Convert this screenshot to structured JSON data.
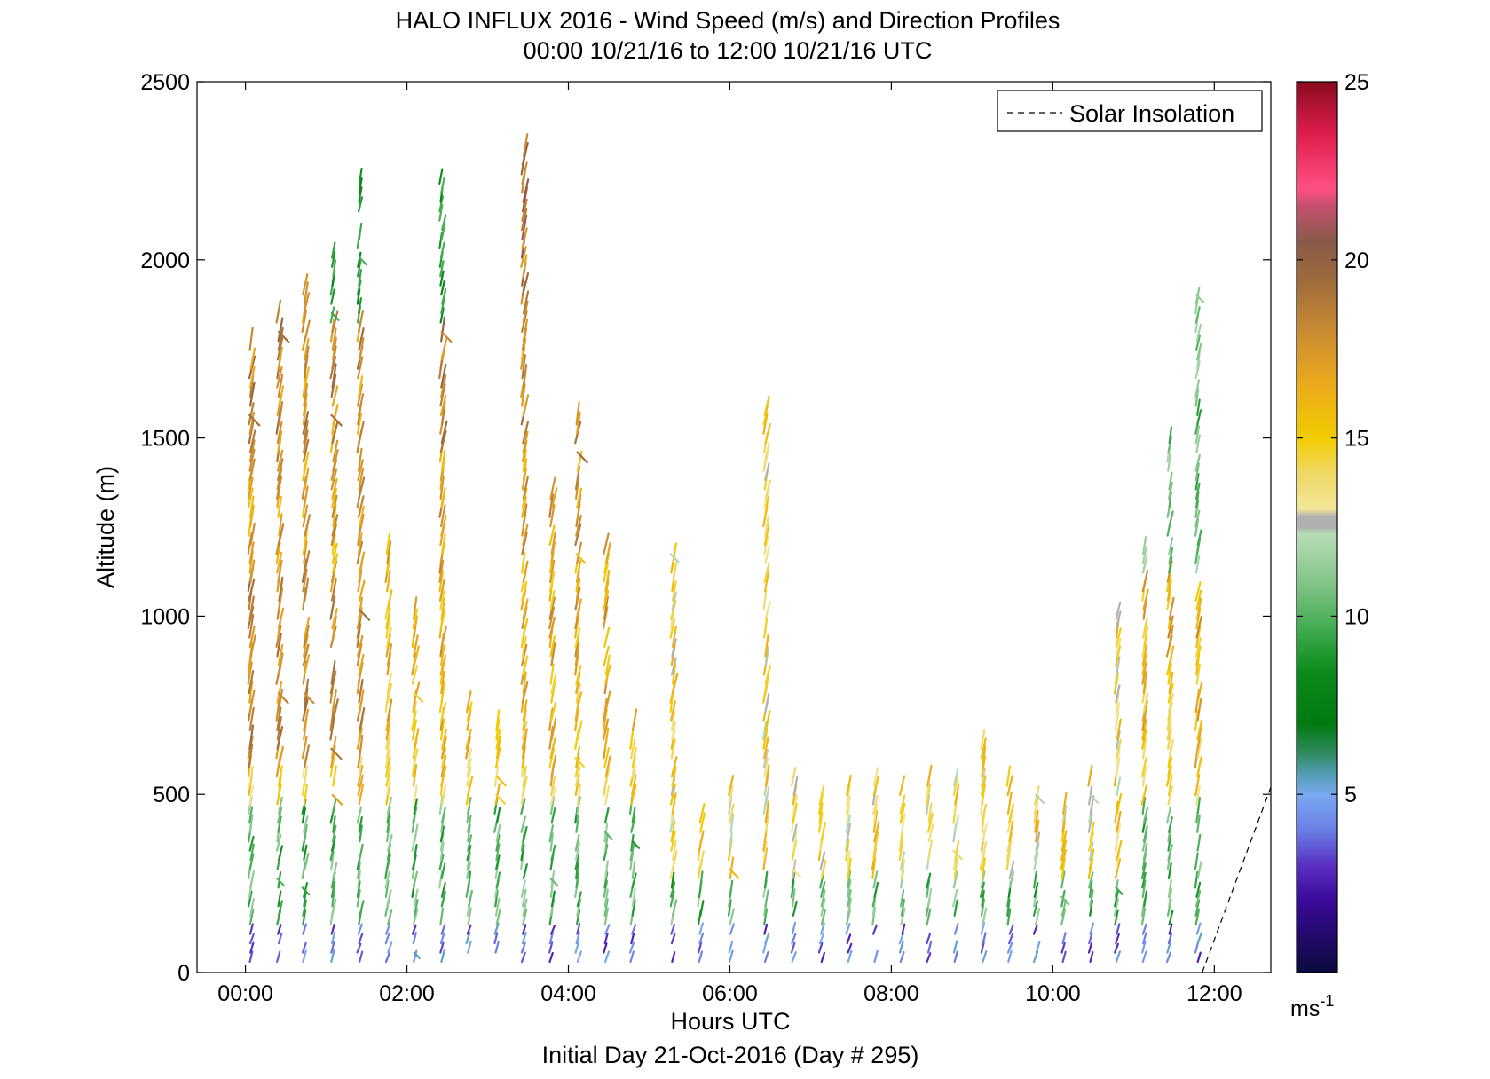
{
  "chart_data": {
    "type": "scatter",
    "marker": "wind-barb-arrows",
    "title": "HALO INFLUX 2016 - Wind Speed (m/s) and Direction Profiles",
    "subtitle": "00:00 10/21/16 to 12:00 10/21/16  UTC",
    "xlabel": "Hours UTC",
    "ylabel": "Altitude (m)",
    "footer": "Initial Day 21-Oct-2016 (Day # 295)",
    "xlim": [
      -0.6,
      12.7
    ],
    "ylim": [
      0,
      2500
    ],
    "x_ticks": [
      0,
      2,
      4,
      6,
      8,
      10,
      12
    ],
    "x_tick_labels": [
      "00:00",
      "02:00",
      "04:00",
      "06:00",
      "08:00",
      "10:00",
      "12:00"
    ],
    "y_ticks": [
      0,
      500,
      1000,
      1500,
      2000,
      2500
    ],
    "y_tick_labels": [
      "0",
      "500",
      "1000",
      "1500",
      "2000",
      "2500"
    ],
    "grid": false,
    "legend": {
      "position": "top-right",
      "entries": [
        {
          "label": "Solar Insolation",
          "style": "dashed",
          "color": "#000000"
        }
      ]
    },
    "solar_insolation": {
      "x": [
        11.85,
        12.7
      ],
      "y": [
        0,
        520
      ]
    },
    "colorbar": {
      "label": "ms",
      "label_superscript": "-1",
      "range": [
        0,
        25
      ],
      "ticks": [
        5,
        10,
        15,
        20,
        25
      ],
      "tick_labels": [
        "5",
        "10",
        "15",
        "20",
        "25"
      ],
      "stops": [
        {
          "v": 0.0,
          "c": "#0b0b3d"
        },
        {
          "v": 2.0,
          "c": "#3a0a99"
        },
        {
          "v": 3.0,
          "c": "#5a2fc2"
        },
        {
          "v": 4.0,
          "c": "#6a7fe6"
        },
        {
          "v": 5.0,
          "c": "#79a9f0"
        },
        {
          "v": 5.6,
          "c": "#4f9bb0"
        },
        {
          "v": 6.2,
          "c": "#2e8a5a"
        },
        {
          "v": 7.0,
          "c": "#007a10"
        },
        {
          "v": 8.4,
          "c": "#0a8a1a"
        },
        {
          "v": 9.5,
          "c": "#3aa84a"
        },
        {
          "v": 11.0,
          "c": "#86c68a"
        },
        {
          "v": 12.3,
          "c": "#b6dcb6"
        },
        {
          "v": 12.5,
          "c": "#b0b0b0"
        },
        {
          "v": 12.8,
          "c": "#b0b0b0"
        },
        {
          "v": 13.0,
          "c": "#f3e69a"
        },
        {
          "v": 14.0,
          "c": "#efd865"
        },
        {
          "v": 15.0,
          "c": "#f2cb00"
        },
        {
          "v": 16.5,
          "c": "#ebaa1c"
        },
        {
          "v": 18.0,
          "c": "#c98a32"
        },
        {
          "v": 19.5,
          "c": "#9c6a3c"
        },
        {
          "v": 20.5,
          "c": "#8a5a4a"
        },
        {
          "v": 21.5,
          "c": "#c4506e"
        },
        {
          "v": 22.0,
          "c": "#ff5082"
        },
        {
          "v": 23.5,
          "c": "#e01e4e"
        },
        {
          "v": 25.0,
          "c": "#8b0a1f"
        }
      ]
    },
    "profiles": [
      {
        "t": 0.05,
        "z0": 30,
        "z1": 1760
      },
      {
        "t": 0.4,
        "z0": 30,
        "z1": 1840
      },
      {
        "t": 0.72,
        "z0": 30,
        "z1": 1910
      },
      {
        "t": 1.07,
        "z0": 30,
        "z1": 2020
      },
      {
        "t": 1.4,
        "z0": 30,
        "z1": 2220
      },
      {
        "t": 1.75,
        "z0": 30,
        "z1": 1180
      },
      {
        "t": 2.08,
        "z0": 30,
        "z1": 1000
      },
      {
        "t": 2.42,
        "z0": 30,
        "z1": 2230
      },
      {
        "t": 2.75,
        "z0": 30,
        "z1": 750
      },
      {
        "t": 3.1,
        "z0": 30,
        "z1": 710
      },
      {
        "t": 3.43,
        "z0": 30,
        "z1": 2300
      },
      {
        "t": 3.78,
        "z0": 30,
        "z1": 1340
      },
      {
        "t": 4.1,
        "z0": 30,
        "z1": 1540
      },
      {
        "t": 4.45,
        "z0": 30,
        "z1": 1180
      },
      {
        "t": 4.78,
        "z0": 30,
        "z1": 680
      },
      {
        "t": 5.28,
        "z0": 30,
        "z1": 1180
      },
      {
        "t": 5.62,
        "z0": 30,
        "z1": 420
      },
      {
        "t": 6.0,
        "z0": 30,
        "z1": 510
      },
      {
        "t": 6.43,
        "z0": 30,
        "z1": 1580
      },
      {
        "t": 6.78,
        "z0": 30,
        "z1": 540
      },
      {
        "t": 7.12,
        "z0": 30,
        "z1": 480
      },
      {
        "t": 7.45,
        "z0": 30,
        "z1": 520
      },
      {
        "t": 7.78,
        "z0": 30,
        "z1": 540
      },
      {
        "t": 8.12,
        "z0": 30,
        "z1": 510
      },
      {
        "t": 8.45,
        "z0": 30,
        "z1": 540
      },
      {
        "t": 8.78,
        "z0": 30,
        "z1": 540
      },
      {
        "t": 9.12,
        "z0": 30,
        "z1": 630
      },
      {
        "t": 9.45,
        "z0": 30,
        "z1": 540
      },
      {
        "t": 9.78,
        "z0": 30,
        "z1": 520
      },
      {
        "t": 10.12,
        "z0": 30,
        "z1": 460
      },
      {
        "t": 10.45,
        "z0": 30,
        "z1": 540
      },
      {
        "t": 10.78,
        "z0": 30,
        "z1": 1000
      },
      {
        "t": 11.12,
        "z0": 30,
        "z1": 1180
      },
      {
        "t": 11.43,
        "z0": 30,
        "z1": 1500
      },
      {
        "t": 11.78,
        "z0": 30,
        "z1": 1920
      }
    ]
  }
}
